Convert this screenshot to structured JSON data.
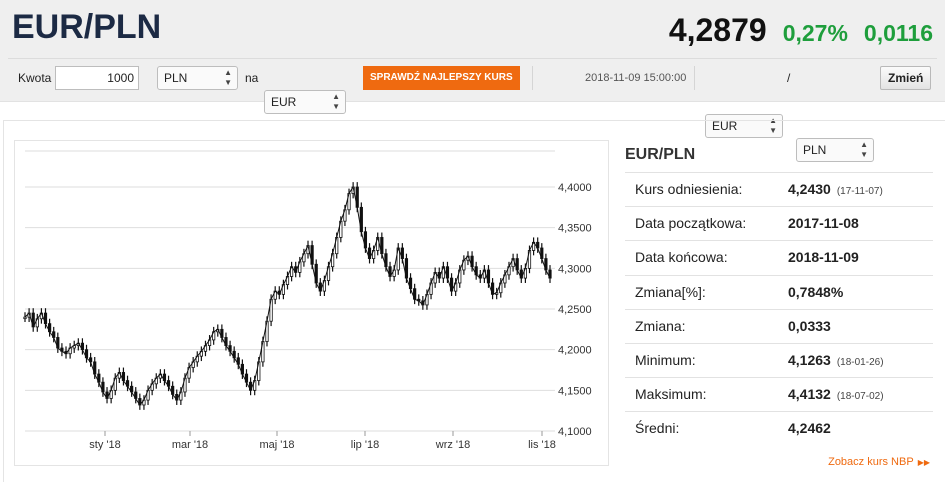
{
  "header": {
    "pair": "EUR/PLN",
    "rate": "4,2879",
    "change_pct": "0,27%",
    "change_abs": "0,0116"
  },
  "converter": {
    "amount_label": "Kwota",
    "amount_value": "1000",
    "from_currency": "PLN",
    "to_label": "na",
    "to_currency": "EUR",
    "best_rate_button": "SPRAWDŹ NAJLEPSZY KURS"
  },
  "pair_selector": {
    "timestamp": "2018-11-09 15:00:00",
    "base": "EUR",
    "separator": "/",
    "quote": "PLN",
    "change_button": "Zmień"
  },
  "colors": {
    "accent": "#ef6a10",
    "positive": "#1e9e3c",
    "title": "#1c2a44"
  },
  "stats": {
    "title": "EUR/PLN",
    "rows": [
      {
        "label": "Kurs odniesienia:",
        "value": "4,2430",
        "date": "(17-11-07)"
      },
      {
        "label": "Data początkowa:",
        "value": "2017-11-08",
        "date": ""
      },
      {
        "label": "Data końcowa:",
        "value": "2018-11-09",
        "date": ""
      },
      {
        "label": "Zmiana[%]:",
        "value": "0,7848%",
        "date": ""
      },
      {
        "label": "Zmiana:",
        "value": "0,0333",
        "date": ""
      },
      {
        "label": "Minimum:",
        "value": "4,1263",
        "date": "(18-01-26)"
      },
      {
        "label": "Maksimum:",
        "value": "4,4132",
        "date": "(18-07-02)"
      },
      {
        "label": "Średni:",
        "value": "4,2462",
        "date": ""
      }
    ],
    "nbp_link": "Zobacz kurs NBP"
  },
  "chart_data": {
    "type": "line",
    "x_tick_labels": [
      "sty '18",
      "mar '18",
      "maj '18",
      "lip '18",
      "wrz '18",
      "lis '18"
    ],
    "y_tick_labels": [
      "4,1000",
      "4,1500",
      "4,2000",
      "4,2500",
      "4,3000",
      "4,3500",
      "4,4000"
    ],
    "ylim": [
      4.09,
      4.42
    ],
    "grid": true,
    "series": [
      {
        "values": [
          4.24,
          4.245,
          4.228,
          4.238,
          4.245,
          4.232,
          4.222,
          4.215,
          4.202,
          4.198,
          4.195,
          4.202,
          4.205,
          4.208,
          4.2,
          4.19,
          4.185,
          4.17,
          4.16,
          4.148,
          4.14,
          4.15,
          4.165,
          4.172,
          4.162,
          4.155,
          4.148,
          4.14,
          4.132,
          4.138,
          4.15,
          4.158,
          4.165,
          4.17,
          4.162,
          4.155,
          4.145,
          4.138,
          4.148,
          4.165,
          4.178,
          4.185,
          4.192,
          4.198,
          4.205,
          4.212,
          4.222,
          4.225,
          4.215,
          4.205,
          4.198,
          4.19,
          4.182,
          4.17,
          4.16,
          4.15,
          4.162,
          4.185,
          4.21,
          4.235,
          4.262,
          4.272,
          4.268,
          4.28,
          4.29,
          4.302,
          4.295,
          4.308,
          4.318,
          4.328,
          4.305,
          4.282,
          4.272,
          4.285,
          4.302,
          4.318,
          4.338,
          4.358,
          4.372,
          4.392,
          4.4,
          4.375,
          4.345,
          4.325,
          4.312,
          4.322,
          4.338,
          4.318,
          4.302,
          4.29,
          4.298,
          4.325,
          4.312,
          4.288,
          4.275,
          4.262,
          4.26,
          4.255,
          4.268,
          4.282,
          4.295,
          4.288,
          4.302,
          4.288,
          4.272,
          4.282,
          4.298,
          4.31,
          4.315,
          4.302,
          4.292,
          4.288,
          4.298,
          4.282,
          4.268,
          4.27,
          4.282,
          4.292,
          4.302,
          4.312,
          4.298,
          4.288,
          4.3,
          4.322,
          4.332,
          4.325,
          4.312,
          4.298,
          4.288
        ]
      }
    ]
  }
}
